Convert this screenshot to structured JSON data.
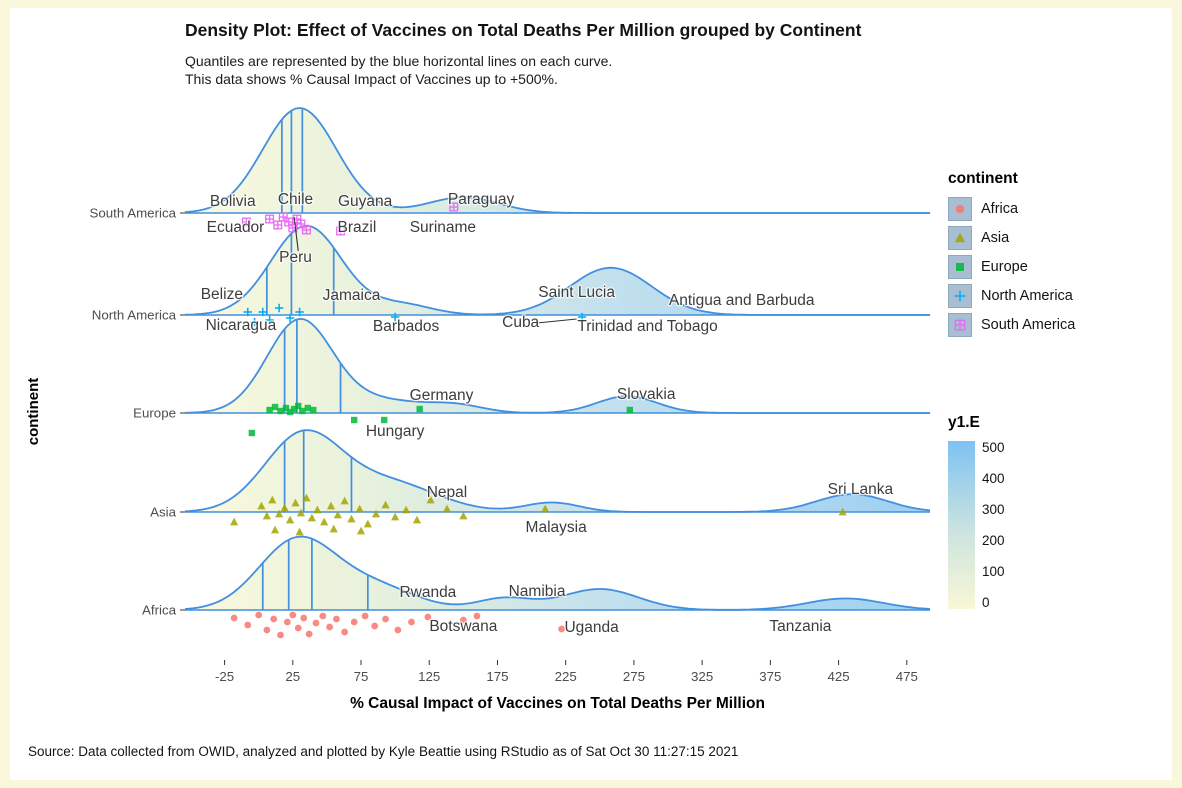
{
  "page": {
    "frame_color": "#FBF7DC",
    "title": "Density Plot: Effect of Vaccines on Total Deaths Per Million grouped by Continent",
    "subtitle_line1": "Quantiles are represented by the blue horizontal lines on each curve.",
    "subtitle_line2": "This data shows % Causal Impact of Vaccines up to +500%.",
    "caption": "Source: Data collected from OWID, analyzed and plotted by Kyle Beattie using RStudio as of Sat Oct 30 11:27:15 2021"
  },
  "legend_continent": {
    "title": "continent",
    "key_fill": "#A7BED3",
    "key_border": "#8FA8BE",
    "entries": [
      {
        "label": "Africa",
        "shape": "circle",
        "color": "#F8766D"
      },
      {
        "label": "Asia",
        "shape": "triangle",
        "color": "#A3A500"
      },
      {
        "label": "Europe",
        "shape": "square",
        "color": "#00BA38"
      },
      {
        "label": "North America",
        "shape": "plus",
        "color": "#00B0F6"
      },
      {
        "label": "South America",
        "shape": "square-plus",
        "color": "#E76BF3"
      }
    ]
  },
  "legend_gradient": {
    "title": "y1.E",
    "tick_labels": [
      "500",
      "400",
      "300",
      "200",
      "100",
      "0"
    ],
    "stops": [
      "#7EC2F3",
      "#CDE4DF",
      "#F8F8D6"
    ]
  },
  "chart_data": {
    "type": "area",
    "variant": "ridgeline-density",
    "title": "Density Plot: Effect of Vaccines on Total Deaths Per Million grouped by Continent",
    "xlabel": "% Causal Impact of Vaccines on Total Deaths Per Million",
    "ylabel": "continent",
    "xlim": [
      -54,
      492
    ],
    "x_ticks": [
      -25,
      25,
      75,
      125,
      175,
      225,
      275,
      325,
      375,
      425,
      475
    ],
    "curve_color": "#418FDE",
    "quantile_color": "#418FDE",
    "label_color": "#3D3D3D",
    "tick_color": "#4D4D4D",
    "fill_stops": [
      [
        "0%",
        "#F9F9D8"
      ],
      [
        "25%",
        "#E4EFD8"
      ],
      [
        "55%",
        "#BCDDEA"
      ],
      [
        "100%",
        "#8FC9F1"
      ]
    ],
    "rows": [
      {
        "continent": "South America",
        "marker": "square-plus",
        "marker_color": "#E76BF3",
        "density": [
          {
            "c": 30,
            "s": 27,
            "h": 1.0
          },
          {
            "c": 150,
            "s": 26,
            "h": 0.15
          }
        ],
        "quantiles": [
          17,
          24,
          32
        ],
        "points": [
          [
            -9,
            9
          ],
          [
            8,
            6
          ],
          [
            14,
            12
          ],
          [
            18,
            4
          ],
          [
            22,
            9
          ],
          [
            25,
            15
          ],
          [
            28,
            6
          ],
          [
            31,
            11
          ],
          [
            35,
            17
          ],
          [
            60,
            18
          ],
          [
            143,
            -6
          ]
        ],
        "labels": [
          {
            "text": "Bolivia",
            "x": -19,
            "dy": -7
          },
          {
            "text": "Chile",
            "x": 27,
            "dy": -9
          },
          {
            "text": "Guyana",
            "x": 78,
            "dy": -7
          },
          {
            "text": "Paraguay",
            "x": 163,
            "dy": -9
          },
          {
            "text": "Ecuador",
            "x": -17,
            "dy": 19
          },
          {
            "text": "Brazil",
            "x": 72,
            "dy": 19
          },
          {
            "text": "Suriname",
            "x": 135,
            "dy": 19
          },
          {
            "text": "Peru",
            "x": 27,
            "dy": 49,
            "leader": [
              [
                26,
                4
              ],
              [
                29,
                38
              ]
            ]
          }
        ]
      },
      {
        "continent": "North America",
        "marker": "plus",
        "marker_color": "#00B0F6",
        "density": [
          {
            "c": 35,
            "s": 26,
            "h": 0.85
          },
          {
            "c": 105,
            "s": 22,
            "h": 0.1
          },
          {
            "c": 258,
            "s": 30,
            "h": 0.45
          }
        ],
        "quantiles": [
          6,
          24,
          55
        ],
        "points": [
          [
            -8,
            -3
          ],
          [
            -3,
            7
          ],
          [
            3,
            -3
          ],
          [
            8,
            5
          ],
          [
            15,
            -7
          ],
          [
            23,
            3
          ],
          [
            30,
            -3
          ],
          [
            100,
            2
          ],
          [
            237,
            2
          ]
        ],
        "labels": [
          {
            "text": "Belize",
            "x": -27,
            "dy": -16
          },
          {
            "text": "Jamaica",
            "x": 68,
            "dy": -15
          },
          {
            "text": "Saint Lucia",
            "x": 233,
            "dy": -18
          },
          {
            "text": "Antigua and Barbuda",
            "x": 354,
            "dy": -10
          },
          {
            "text": "Nicaragua",
            "x": -13,
            "dy": 15
          },
          {
            "text": "Barbados",
            "x": 108,
            "dy": 16
          },
          {
            "text": "Cuba",
            "x": 192,
            "dy": 12,
            "leader": [
              [
                204,
                8
              ],
              [
                233,
                4
              ]
            ]
          },
          {
            "text": "Trinidad and Tobago",
            "x": 285,
            "dy": 16
          }
        ]
      },
      {
        "continent": "Europe",
        "marker": "square",
        "marker_color": "#00BA38",
        "density": [
          {
            "c": 30,
            "s": 24,
            "h": 0.88
          },
          {
            "c": 90,
            "s": 30,
            "h": 0.12
          },
          {
            "c": 145,
            "s": 20,
            "h": 0.07
          },
          {
            "c": 270,
            "s": 22,
            "h": 0.16
          }
        ],
        "quantiles": [
          19,
          28,
          60
        ],
        "points": [
          [
            -5,
            20
          ],
          [
            8,
            -3
          ],
          [
            12,
            -6
          ],
          [
            16,
            -2
          ],
          [
            20,
            -5
          ],
          [
            23,
            -1
          ],
          [
            26,
            -4
          ],
          [
            29,
            -7
          ],
          [
            32,
            -2
          ],
          [
            36,
            -5
          ],
          [
            40,
            -3
          ],
          [
            70,
            7
          ],
          [
            92,
            7
          ],
          [
            118,
            -4
          ],
          [
            272,
            -3
          ]
        ],
        "labels": [
          {
            "text": "Germany",
            "x": 134,
            "dy": -13
          },
          {
            "text": "Slovakia",
            "x": 284,
            "dy": -14
          },
          {
            "text": "Hungary",
            "x": 100,
            "dy": 23
          }
        ]
      },
      {
        "continent": "Asia",
        "marker": "triangle",
        "marker_color": "#A3A500",
        "density": [
          {
            "c": 32,
            "s": 28,
            "h": 0.72
          },
          {
            "c": 95,
            "s": 35,
            "h": 0.28
          },
          {
            "c": 215,
            "s": 20,
            "h": 0.09
          },
          {
            "c": 435,
            "s": 26,
            "h": 0.17
          }
        ],
        "quantiles": [
          19,
          33,
          68
        ],
        "points": [
          [
            -18,
            10
          ],
          [
            2,
            -6
          ],
          [
            6,
            4
          ],
          [
            10,
            -12
          ],
          [
            12,
            18
          ],
          [
            15,
            2
          ],
          [
            19,
            -4
          ],
          [
            23,
            8
          ],
          [
            27,
            -9
          ],
          [
            30,
            20
          ],
          [
            31,
            1
          ],
          [
            35,
            -14
          ],
          [
            39,
            6
          ],
          [
            43,
            -2
          ],
          [
            48,
            10
          ],
          [
            53,
            -6
          ],
          [
            55,
            17
          ],
          [
            58,
            3
          ],
          [
            63,
            -11
          ],
          [
            68,
            7
          ],
          [
            74,
            -3
          ],
          [
            75,
            19
          ],
          [
            80,
            12
          ],
          [
            86,
            2
          ],
          [
            93,
            -7
          ],
          [
            100,
            5
          ],
          [
            108,
            -2
          ],
          [
            116,
            8
          ],
          [
            126,
            -12
          ],
          [
            138,
            -3
          ],
          [
            150,
            4
          ],
          [
            210,
            -3
          ],
          [
            428,
            0
          ]
        ],
        "labels": [
          {
            "text": "Nepal",
            "x": 138,
            "dy": -15
          },
          {
            "text": "Sri Lanka",
            "x": 441,
            "dy": -18
          },
          {
            "text": "Malaysia",
            "x": 218,
            "dy": 20
          }
        ]
      },
      {
        "continent": "Africa",
        "marker": "circle",
        "marker_color": "#F8766D",
        "density": [
          {
            "c": 28,
            "s": 28,
            "h": 0.66
          },
          {
            "c": 85,
            "s": 30,
            "h": 0.22
          },
          {
            "c": 180,
            "s": 20,
            "h": 0.11
          },
          {
            "c": 250,
            "s": 28,
            "h": 0.2
          },
          {
            "c": 430,
            "s": 28,
            "h": 0.11
          }
        ],
        "quantiles": [
          3,
          22,
          39,
          80
        ],
        "points": [
          [
            -18,
            8
          ],
          [
            -8,
            15
          ],
          [
            0,
            5
          ],
          [
            6,
            20
          ],
          [
            11,
            9
          ],
          [
            16,
            25
          ],
          [
            21,
            12
          ],
          [
            25,
            5
          ],
          [
            29,
            18
          ],
          [
            33,
            8
          ],
          [
            37,
            24
          ],
          [
            42,
            13
          ],
          [
            47,
            6
          ],
          [
            52,
            17
          ],
          [
            57,
            9
          ],
          [
            63,
            22
          ],
          [
            70,
            12
          ],
          [
            78,
            6
          ],
          [
            85,
            16
          ],
          [
            93,
            9
          ],
          [
            102,
            20
          ],
          [
            112,
            12
          ],
          [
            124,
            7
          ],
          [
            150,
            10
          ],
          [
            160,
            6
          ],
          [
            222,
            19
          ]
        ],
        "labels": [
          {
            "text": "Rwanda",
            "x": 124,
            "dy": -13
          },
          {
            "text": "Namibia",
            "x": 204,
            "dy": -14
          },
          {
            "text": "Botswana",
            "x": 150,
            "dy": 21
          },
          {
            "text": "Uganda",
            "x": 244,
            "dy": 22
          },
          {
            "text": "Tanzania",
            "x": 397,
            "dy": 21
          }
        ]
      }
    ]
  }
}
